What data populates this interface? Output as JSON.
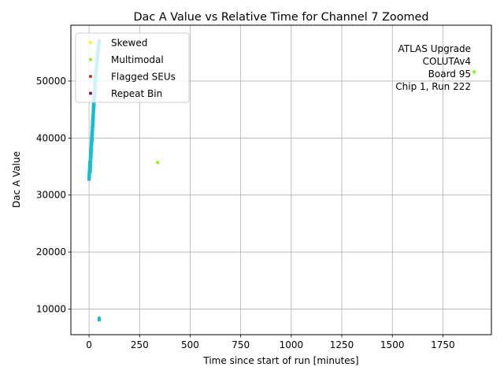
{
  "chart_data": {
    "type": "scatter",
    "title": "Dac A Value vs Relative Time for Channel 7 Zoomed",
    "xlabel": "Time since start of run [minutes]",
    "ylabel": "Dac A Value",
    "xlim": [
      -90,
      1990
    ],
    "ylim": [
      5500,
      59800
    ],
    "xticks": [
      0,
      250,
      500,
      750,
      1000,
      1250,
      1500,
      1750
    ],
    "yticks": [
      10000,
      20000,
      30000,
      40000,
      50000
    ],
    "grid": true,
    "legend_position": "top-left",
    "annotation": [
      "ATLAS Upgrade",
      "COLUTAv4",
      "Board 95",
      "Chip 1, Run 222"
    ],
    "main_band": {
      "color": "#17becf",
      "segments": [
        {
          "x": [
            0,
            5
          ],
          "y": [
            32600,
            36000
          ]
        },
        {
          "x": [
            5,
            10
          ],
          "y": [
            34000,
            38000
          ]
        },
        {
          "x": [
            8,
            15
          ],
          "y": [
            36500,
            41000
          ]
        },
        {
          "x": [
            13,
            20
          ],
          "y": [
            39000,
            44000
          ]
        },
        {
          "x": [
            18,
            25
          ],
          "y": [
            42000,
            47500
          ]
        },
        {
          "x": [
            22,
            35
          ],
          "y": [
            45000,
            52000
          ]
        },
        {
          "x": [
            30,
            50
          ],
          "y": [
            50000,
            57200
          ]
        }
      ],
      "outliers": [
        {
          "x": 50,
          "y": 8100
        },
        {
          "x": 50,
          "y": 8400
        }
      ]
    },
    "series": [
      {
        "name": "Skewed",
        "color": "#ffff00",
        "points": []
      },
      {
        "name": "Multimodal",
        "color": "#7fff00",
        "points": [
          [
            340,
            35700
          ],
          [
            1905,
            51600
          ]
        ]
      },
      {
        "name": "Flagged SEUs",
        "color": "#d62728",
        "points": []
      },
      {
        "name": "Repeat Bin",
        "color": "#800080",
        "points": []
      }
    ]
  }
}
